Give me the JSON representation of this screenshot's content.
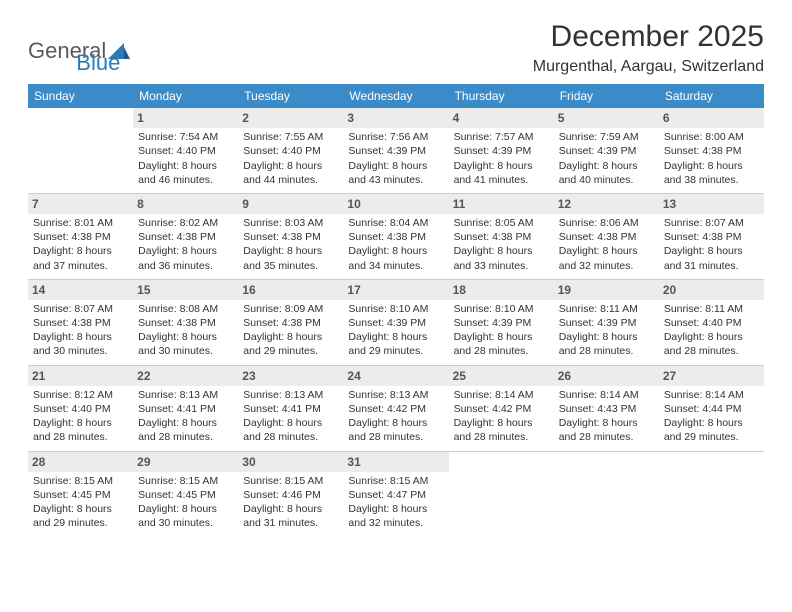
{
  "brand": {
    "part1": "General",
    "part2": "Blue"
  },
  "title": "December 2025",
  "location": "Murgenthal, Aargau, Switzerland",
  "colors": {
    "header_bg": "#3b8bc8",
    "weekday_text": "#ffffff",
    "daynum_bg": "#ececec",
    "border": "#3b8bc8",
    "brand_gray": "#5a5a5a",
    "brand_blue": "#2a7ab8"
  },
  "weekdays": [
    "Sunday",
    "Monday",
    "Tuesday",
    "Wednesday",
    "Thursday",
    "Friday",
    "Saturday"
  ],
  "weeks": [
    [
      {
        "n": "",
        "sr": "",
        "ss": "",
        "dl": ""
      },
      {
        "n": "1",
        "sr": "Sunrise: 7:54 AM",
        "ss": "Sunset: 4:40 PM",
        "dl": "Daylight: 8 hours and 46 minutes."
      },
      {
        "n": "2",
        "sr": "Sunrise: 7:55 AM",
        "ss": "Sunset: 4:40 PM",
        "dl": "Daylight: 8 hours and 44 minutes."
      },
      {
        "n": "3",
        "sr": "Sunrise: 7:56 AM",
        "ss": "Sunset: 4:39 PM",
        "dl": "Daylight: 8 hours and 43 minutes."
      },
      {
        "n": "4",
        "sr": "Sunrise: 7:57 AM",
        "ss": "Sunset: 4:39 PM",
        "dl": "Daylight: 8 hours and 41 minutes."
      },
      {
        "n": "5",
        "sr": "Sunrise: 7:59 AM",
        "ss": "Sunset: 4:39 PM",
        "dl": "Daylight: 8 hours and 40 minutes."
      },
      {
        "n": "6",
        "sr": "Sunrise: 8:00 AM",
        "ss": "Sunset: 4:38 PM",
        "dl": "Daylight: 8 hours and 38 minutes."
      }
    ],
    [
      {
        "n": "7",
        "sr": "Sunrise: 8:01 AM",
        "ss": "Sunset: 4:38 PM",
        "dl": "Daylight: 8 hours and 37 minutes."
      },
      {
        "n": "8",
        "sr": "Sunrise: 8:02 AM",
        "ss": "Sunset: 4:38 PM",
        "dl": "Daylight: 8 hours and 36 minutes."
      },
      {
        "n": "9",
        "sr": "Sunrise: 8:03 AM",
        "ss": "Sunset: 4:38 PM",
        "dl": "Daylight: 8 hours and 35 minutes."
      },
      {
        "n": "10",
        "sr": "Sunrise: 8:04 AM",
        "ss": "Sunset: 4:38 PM",
        "dl": "Daylight: 8 hours and 34 minutes."
      },
      {
        "n": "11",
        "sr": "Sunrise: 8:05 AM",
        "ss": "Sunset: 4:38 PM",
        "dl": "Daylight: 8 hours and 33 minutes."
      },
      {
        "n": "12",
        "sr": "Sunrise: 8:06 AM",
        "ss": "Sunset: 4:38 PM",
        "dl": "Daylight: 8 hours and 32 minutes."
      },
      {
        "n": "13",
        "sr": "Sunrise: 8:07 AM",
        "ss": "Sunset: 4:38 PM",
        "dl": "Daylight: 8 hours and 31 minutes."
      }
    ],
    [
      {
        "n": "14",
        "sr": "Sunrise: 8:07 AM",
        "ss": "Sunset: 4:38 PM",
        "dl": "Daylight: 8 hours and 30 minutes."
      },
      {
        "n": "15",
        "sr": "Sunrise: 8:08 AM",
        "ss": "Sunset: 4:38 PM",
        "dl": "Daylight: 8 hours and 30 minutes."
      },
      {
        "n": "16",
        "sr": "Sunrise: 8:09 AM",
        "ss": "Sunset: 4:38 PM",
        "dl": "Daylight: 8 hours and 29 minutes."
      },
      {
        "n": "17",
        "sr": "Sunrise: 8:10 AM",
        "ss": "Sunset: 4:39 PM",
        "dl": "Daylight: 8 hours and 29 minutes."
      },
      {
        "n": "18",
        "sr": "Sunrise: 8:10 AM",
        "ss": "Sunset: 4:39 PM",
        "dl": "Daylight: 8 hours and 28 minutes."
      },
      {
        "n": "19",
        "sr": "Sunrise: 8:11 AM",
        "ss": "Sunset: 4:39 PM",
        "dl": "Daylight: 8 hours and 28 minutes."
      },
      {
        "n": "20",
        "sr": "Sunrise: 8:11 AM",
        "ss": "Sunset: 4:40 PM",
        "dl": "Daylight: 8 hours and 28 minutes."
      }
    ],
    [
      {
        "n": "21",
        "sr": "Sunrise: 8:12 AM",
        "ss": "Sunset: 4:40 PM",
        "dl": "Daylight: 8 hours and 28 minutes."
      },
      {
        "n": "22",
        "sr": "Sunrise: 8:13 AM",
        "ss": "Sunset: 4:41 PM",
        "dl": "Daylight: 8 hours and 28 minutes."
      },
      {
        "n": "23",
        "sr": "Sunrise: 8:13 AM",
        "ss": "Sunset: 4:41 PM",
        "dl": "Daylight: 8 hours and 28 minutes."
      },
      {
        "n": "24",
        "sr": "Sunrise: 8:13 AM",
        "ss": "Sunset: 4:42 PM",
        "dl": "Daylight: 8 hours and 28 minutes."
      },
      {
        "n": "25",
        "sr": "Sunrise: 8:14 AM",
        "ss": "Sunset: 4:42 PM",
        "dl": "Daylight: 8 hours and 28 minutes."
      },
      {
        "n": "26",
        "sr": "Sunrise: 8:14 AM",
        "ss": "Sunset: 4:43 PM",
        "dl": "Daylight: 8 hours and 28 minutes."
      },
      {
        "n": "27",
        "sr": "Sunrise: 8:14 AM",
        "ss": "Sunset: 4:44 PM",
        "dl": "Daylight: 8 hours and 29 minutes."
      }
    ],
    [
      {
        "n": "28",
        "sr": "Sunrise: 8:15 AM",
        "ss": "Sunset: 4:45 PM",
        "dl": "Daylight: 8 hours and 29 minutes."
      },
      {
        "n": "29",
        "sr": "Sunrise: 8:15 AM",
        "ss": "Sunset: 4:45 PM",
        "dl": "Daylight: 8 hours and 30 minutes."
      },
      {
        "n": "30",
        "sr": "Sunrise: 8:15 AM",
        "ss": "Sunset: 4:46 PM",
        "dl": "Daylight: 8 hours and 31 minutes."
      },
      {
        "n": "31",
        "sr": "Sunrise: 8:15 AM",
        "ss": "Sunset: 4:47 PM",
        "dl": "Daylight: 8 hours and 32 minutes."
      },
      {
        "n": "",
        "sr": "",
        "ss": "",
        "dl": ""
      },
      {
        "n": "",
        "sr": "",
        "ss": "",
        "dl": ""
      },
      {
        "n": "",
        "sr": "",
        "ss": "",
        "dl": ""
      }
    ]
  ]
}
